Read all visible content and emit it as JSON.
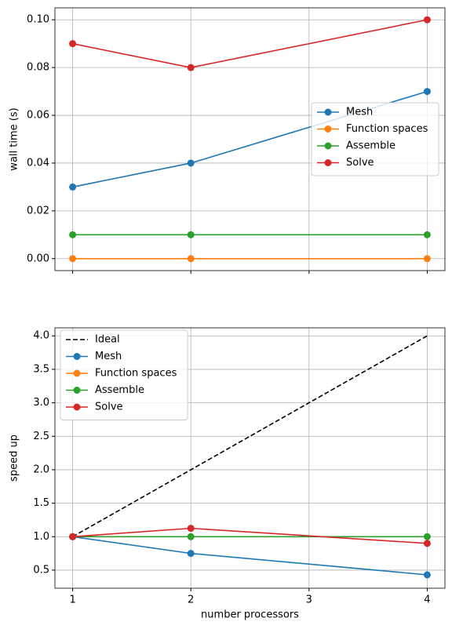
{
  "chart_data": [
    {
      "type": "line",
      "ylabel": "wall time (s)",
      "x": [
        1,
        2,
        4
      ],
      "xlim": [
        0.85,
        4.15
      ],
      "xticks": [
        1,
        2,
        3,
        4
      ],
      "ylim": [
        -0.005,
        0.105
      ],
      "yticks": [
        {
          "value": 0,
          "label": "0.00"
        },
        {
          "value": 0.02,
          "label": "0.02"
        },
        {
          "value": 0.04,
          "label": "0.04"
        },
        {
          "value": 0.06,
          "label": "0.06"
        },
        {
          "value": 0.08,
          "label": "0.08"
        },
        {
          "value": 0.1,
          "label": "0.10"
        }
      ],
      "grid": true,
      "legend": "center right",
      "series": [
        {
          "name": "Mesh",
          "color": "#1f77b4",
          "values": [
            0.03,
            0.04,
            0.07
          ]
        },
        {
          "name": "Function spaces",
          "color": "#ff7f0e",
          "values": [
            0,
            0,
            0
          ]
        },
        {
          "name": "Assemble",
          "color": "#2ca02c",
          "values": [
            0.01,
            0.01,
            0.01
          ]
        },
        {
          "name": "Solve",
          "color": "#d62728",
          "values": [
            0.09,
            0.08,
            0.1
          ]
        }
      ]
    },
    {
      "type": "line",
      "xlabel": "number processors",
      "ylabel": "speed up",
      "x": [
        1,
        2,
        4
      ],
      "xlim": [
        0.85,
        4.15
      ],
      "xticks": [
        1,
        2,
        3,
        4
      ],
      "ylim": [
        0.23,
        4.12
      ],
      "yticks": [
        0.5,
        {
          "value": 1,
          "label": "1.0"
        },
        1.5,
        {
          "value": 2,
          "label": "2.0"
        },
        2.5,
        {
          "value": 3,
          "label": "3.0"
        },
        3.5,
        {
          "value": 4,
          "label": "4.0"
        }
      ],
      "grid": true,
      "legend": "upper left",
      "series": [
        {
          "name": "Ideal",
          "color": "#000000",
          "dashed": true,
          "values": [
            1,
            2,
            4
          ]
        },
        {
          "name": "Mesh",
          "color": "#1f77b4",
          "values": [
            1,
            0.75,
            0.43
          ]
        },
        {
          "name": "Function spaces",
          "color": "#ff7f0e",
          "values": [
            null,
            null,
            null
          ]
        },
        {
          "name": "Assemble",
          "color": "#2ca02c",
          "values": [
            1,
            1,
            1
          ]
        },
        {
          "name": "Solve",
          "color": "#d62728",
          "values": [
            1,
            1.125,
            0.9
          ]
        }
      ]
    }
  ]
}
